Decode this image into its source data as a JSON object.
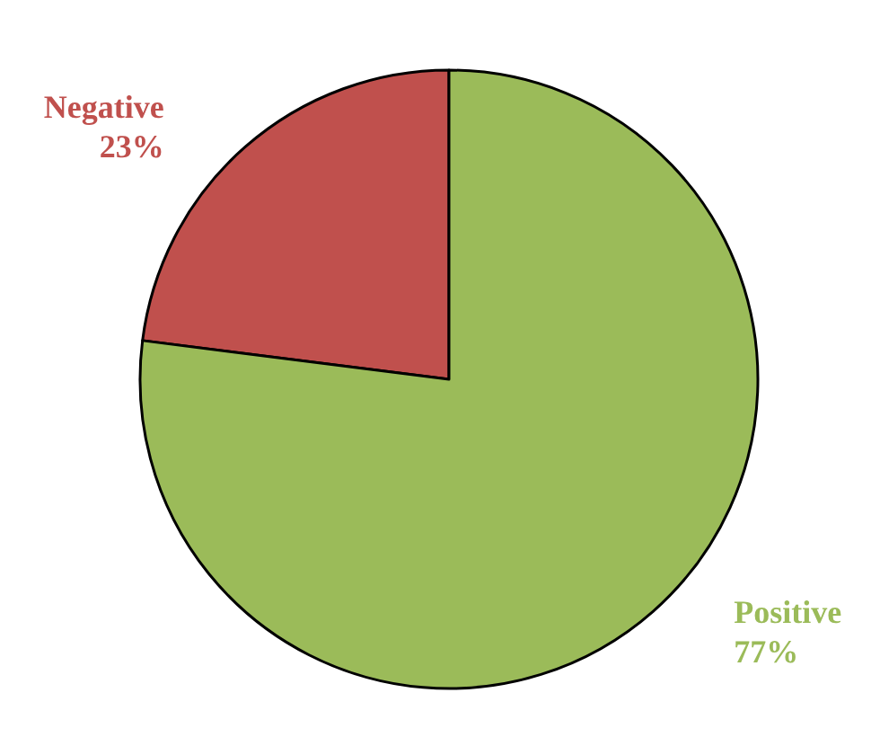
{
  "chart_data": {
    "type": "pie",
    "categories": [
      "Negative",
      "Positive"
    ],
    "values": [
      23,
      77
    ],
    "colors": [
      "#c0504d",
      "#9bbb59"
    ],
    "value_labels": [
      "23%",
      "77%"
    ],
    "legend": false
  }
}
